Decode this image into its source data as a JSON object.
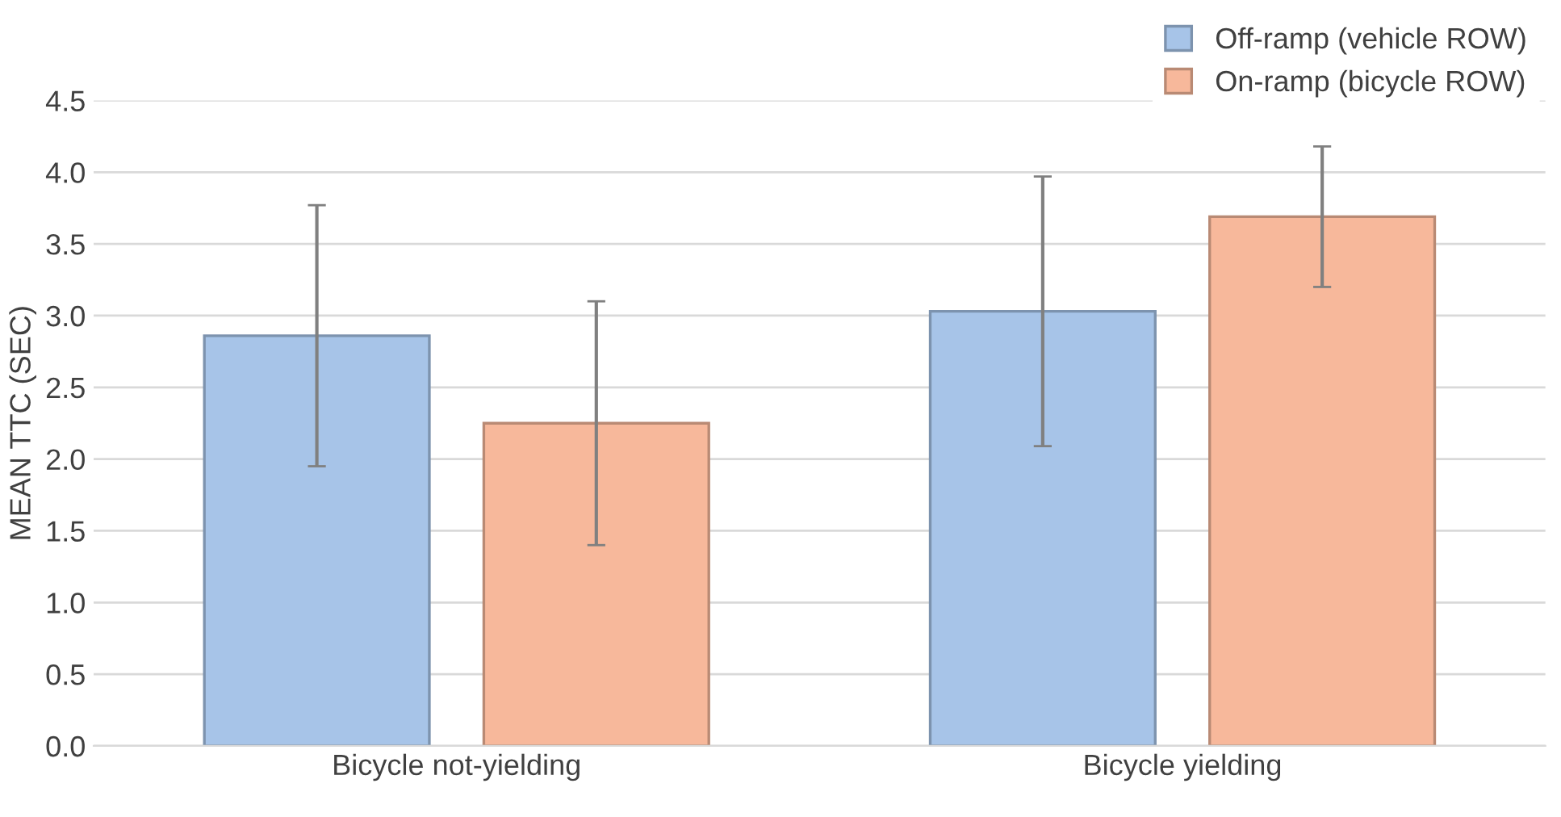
{
  "chart_data": {
    "type": "bar",
    "ylabel": "MEAN TTC (SEC)",
    "categories": [
      "Bicycle not-yielding",
      "Bicycle yielding"
    ],
    "series": [
      {
        "name": "Off-ramp (vehicle ROW)",
        "color": "#a7c4e8",
        "values": [
          2.86,
          3.03
        ],
        "errors": [
          0.91,
          0.94
        ]
      },
      {
        "name": "On-ramp (bicycle ROW)",
        "color": "#f7b89b",
        "values": [
          2.25,
          3.69
        ],
        "errors": [
          0.85,
          0.49
        ]
      }
    ],
    "ylim": [
      0,
      4.5
    ],
    "yticks": [
      {
        "value": 0,
        "label": "0.0"
      },
      {
        "value": 0.5,
        "label": "0.5"
      },
      {
        "value": 1,
        "label": "1.0"
      },
      {
        "value": 1.5,
        "label": "1.5"
      },
      {
        "value": 2,
        "label": "2.0"
      },
      {
        "value": 2.5,
        "label": "2.5"
      },
      {
        "value": 3,
        "label": "3.0"
      },
      {
        "value": 3.5,
        "label": "3.5"
      },
      {
        "value": 4,
        "label": "4.0"
      },
      {
        "value": 4.5,
        "label": "4.5"
      }
    ],
    "grid": "y",
    "legend": "top right"
  }
}
